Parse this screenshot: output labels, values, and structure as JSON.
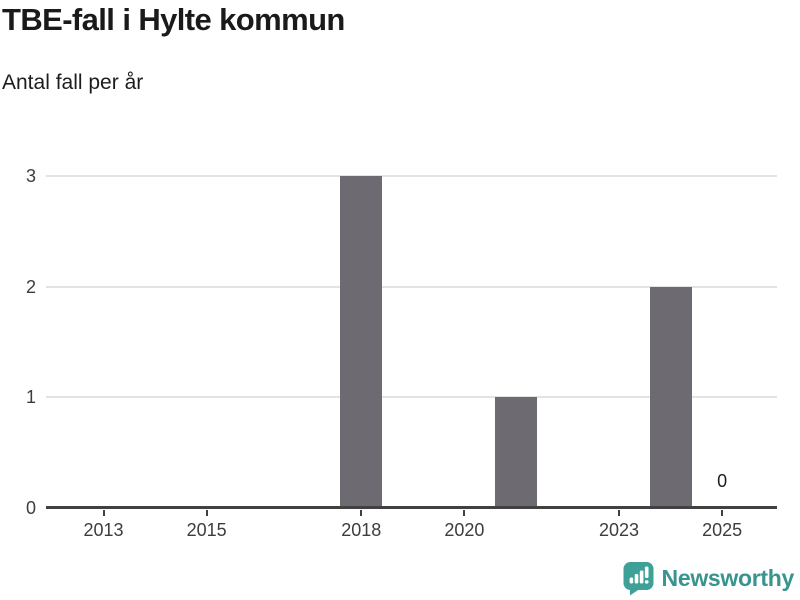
{
  "header": {
    "title": "TBE-fall i Hylte kommun",
    "subtitle": "Antal fall per år"
  },
  "chart_data": {
    "type": "bar",
    "title": "TBE-fall i Hylte kommun",
    "subtitle": "Antal fall per år",
    "xlabel": "",
    "ylabel": "Antal fall per år",
    "x": [
      2012,
      2013,
      2014,
      2015,
      2016,
      2017,
      2018,
      2019,
      2020,
      2021,
      2022,
      2023,
      2024,
      2025
    ],
    "values": [
      0,
      0,
      0,
      0,
      0,
      0,
      3,
      0,
      0,
      1,
      0,
      0,
      2,
      0
    ],
    "ylim": [
      0,
      3
    ],
    "yticks": [
      0,
      1,
      2,
      3
    ],
    "xtick_years": [
      2013,
      2015,
      2018,
      2020,
      2023,
      2025
    ],
    "xtick_labels": [
      "2013",
      "2015",
      "2018",
      "2020",
      "2023",
      "2025"
    ],
    "grid": true,
    "legend": "none",
    "annotations": [
      {
        "year": 2025,
        "label": "0"
      }
    ]
  },
  "footer": {
    "brand": "Newsworthy"
  },
  "icons": {
    "logo_icon": "newsworthy-speech-bubble-barchart-icon"
  },
  "colors": {
    "background": "#ffffff",
    "bar": "#6d6a71",
    "axis": "#414141",
    "gridline": "#e3e3e3",
    "title_text": "#1a1a1a",
    "tick_text": "#3d3d3d",
    "brand_teal_icon": "#3fa098",
    "brand_teal_text": "#38948e"
  }
}
